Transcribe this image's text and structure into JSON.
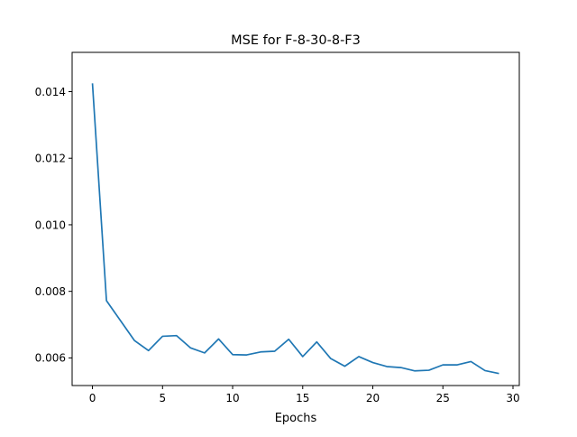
{
  "chart_data": {
    "type": "line",
    "title": "MSE for F-8-30-8-F3",
    "xlabel": "Epochs",
    "ylabel": "",
    "xlim": [
      -1.45,
      30.45
    ],
    "ylim": [
      0.00517,
      0.01518
    ],
    "xticks": [
      0,
      5,
      10,
      15,
      20,
      25,
      30
    ],
    "yticks": [
      0.006,
      0.008,
      0.01,
      0.012,
      0.014
    ],
    "xtick_labels": [
      "0",
      "5",
      "10",
      "15",
      "20",
      "25",
      "30"
    ],
    "ytick_labels": [
      "0.006",
      "0.008",
      "0.010",
      "0.012",
      "0.014"
    ],
    "grid": false,
    "legend": "none",
    "series": [
      {
        "color": "#1f77b4",
        "x": [
          0,
          1,
          2,
          3,
          4,
          5,
          6,
          7,
          8,
          9,
          10,
          11,
          12,
          13,
          14,
          15,
          16,
          17,
          18,
          19,
          20,
          21,
          22,
          23,
          24,
          25,
          26,
          27,
          28,
          29
        ],
        "values": [
          0.01425,
          0.00772,
          0.00712,
          0.00652,
          0.00622,
          0.00665,
          0.00667,
          0.0063,
          0.00615,
          0.00657,
          0.0061,
          0.00609,
          0.00618,
          0.0062,
          0.00656,
          0.00604,
          0.00648,
          0.00598,
          0.00575,
          0.00604,
          0.00586,
          0.00574,
          0.00571,
          0.00561,
          0.00563,
          0.00579,
          0.00579,
          0.00589,
          0.00562,
          0.00553
        ]
      }
    ]
  }
}
